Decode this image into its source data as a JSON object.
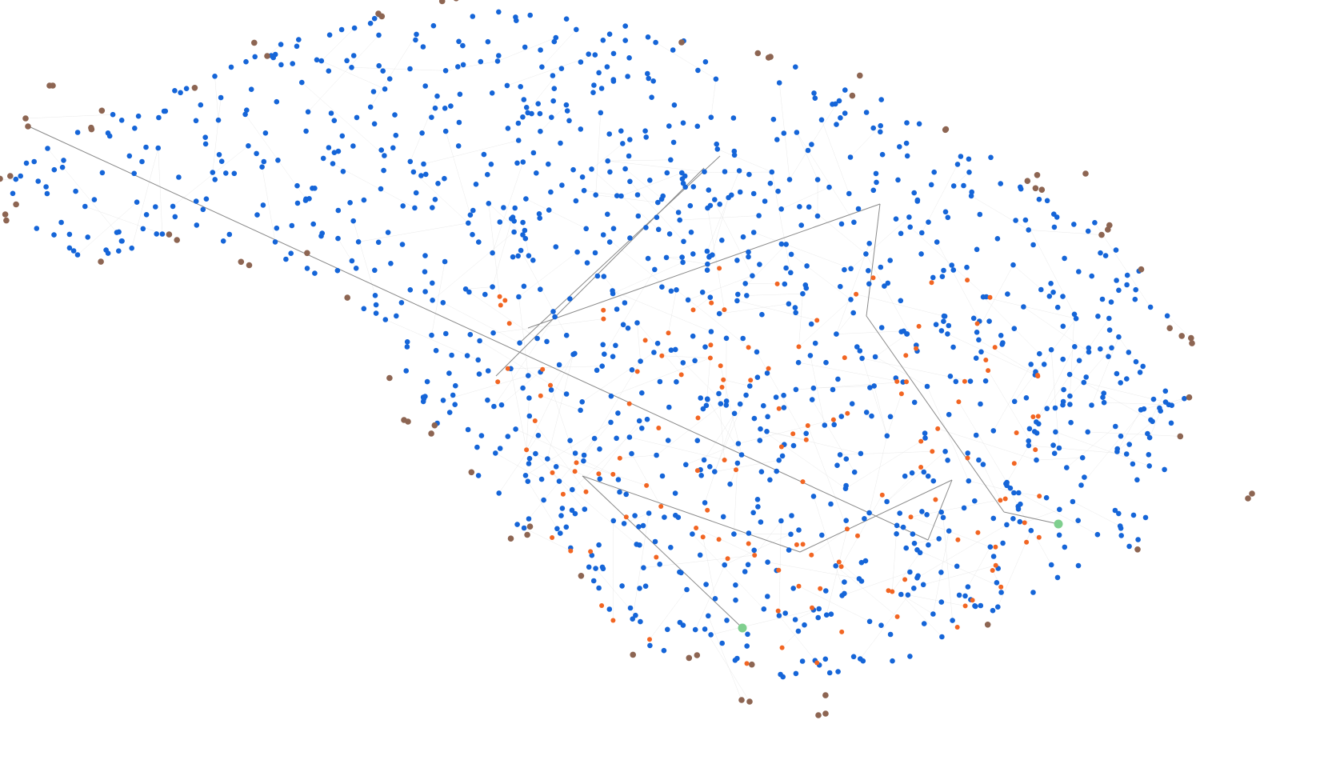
{
  "graph": {
    "type": "network",
    "background": "#ffffff",
    "node_colors": {
      "blue": "#1565d8",
      "orange": "#f26522",
      "brown": "#8d6552",
      "green": "#7fcf8e"
    },
    "edge_color": "#d9d9d9",
    "highlight_edge_color": "#8a8a8a",
    "approx_node_counts": {
      "blue": 1150,
      "orange": 140,
      "brown": 60,
      "green": 2
    },
    "highlighted_path": true
  }
}
